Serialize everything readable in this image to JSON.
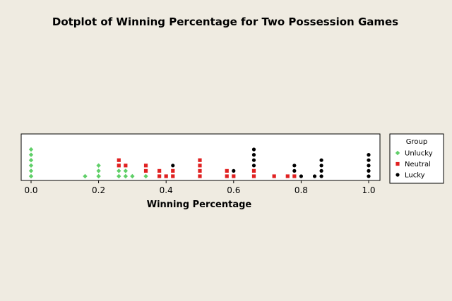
{
  "chart_data": {
    "type": "dotplot",
    "title": "Dotplot of Winning Percentage for Two Possession Games",
    "xlabel": "Winning Percentage",
    "xlim": [
      -0.03,
      1.03
    ],
    "xticks": [
      0.0,
      0.2,
      0.4,
      0.6,
      0.8,
      1.0
    ],
    "xtick_labels": [
      "0.0",
      "0.2",
      "0.4",
      "0.6",
      "0.8",
      "1.0"
    ],
    "legend": {
      "title": "Group",
      "placement": "right"
    },
    "series": [
      {
        "name": "Unlucky",
        "marker": "diamond",
        "color": "#5fcf68",
        "points": [
          {
            "x": 0.0,
            "count": 6
          },
          {
            "x": 0.16,
            "count": 1
          },
          {
            "x": 0.2,
            "count": 3
          },
          {
            "x": 0.26,
            "count": 2
          },
          {
            "x": 0.28,
            "count": 2
          },
          {
            "x": 0.3,
            "count": 1
          },
          {
            "x": 0.34,
            "count": 1
          }
        ]
      },
      {
        "name": "Neutral",
        "marker": "square",
        "color": "#e02020",
        "points": [
          {
            "x": 0.26,
            "count": 2
          },
          {
            "x": 0.28,
            "count": 1
          },
          {
            "x": 0.34,
            "count": 2
          },
          {
            "x": 0.38,
            "count": 2
          },
          {
            "x": 0.4,
            "count": 1
          },
          {
            "x": 0.42,
            "count": 2
          },
          {
            "x": 0.5,
            "count": 4
          },
          {
            "x": 0.58,
            "count": 2
          },
          {
            "x": 0.6,
            "count": 1
          },
          {
            "x": 0.66,
            "count": 2
          },
          {
            "x": 0.72,
            "count": 1
          },
          {
            "x": 0.76,
            "count": 1
          },
          {
            "x": 0.78,
            "count": 1
          }
        ]
      },
      {
        "name": "Lucky",
        "marker": "circle",
        "color": "#000000",
        "points": [
          {
            "x": 0.42,
            "count": 1
          },
          {
            "x": 0.6,
            "count": 1
          },
          {
            "x": 0.66,
            "count": 4
          },
          {
            "x": 0.78,
            "count": 2
          },
          {
            "x": 0.8,
            "count": 1
          },
          {
            "x": 0.84,
            "count": 1
          },
          {
            "x": 0.86,
            "count": 4
          },
          {
            "x": 1.0,
            "count": 5
          }
        ]
      }
    ]
  }
}
